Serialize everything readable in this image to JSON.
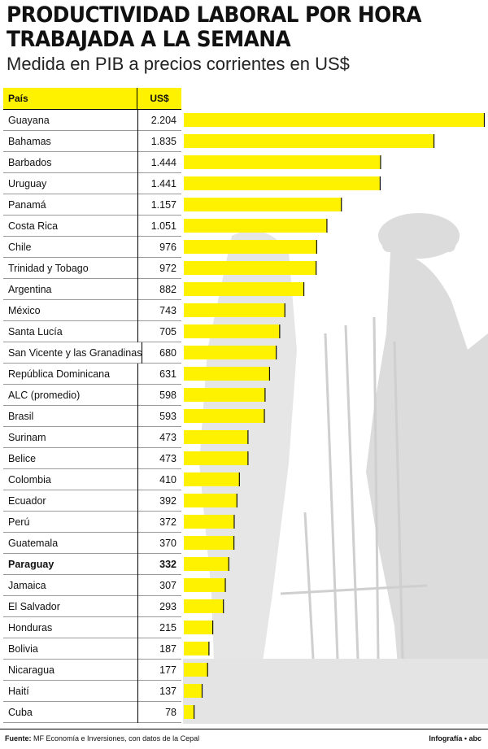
{
  "title": "PRODUCTIVIDAD LABORAL POR HORA TRABAJADA A LA SEMANA",
  "subtitle": "Medida en PIB a precios corrientes en US$",
  "table_headers": {
    "country": "País",
    "value": "US$"
  },
  "colors": {
    "bar": "#fff200",
    "header": "#fff200",
    "bar_edge": "#111111"
  },
  "chart_data": {
    "type": "bar",
    "orientation": "horizontal",
    "categories": [
      "Guayana",
      "Bahamas",
      "Barbados",
      "Uruguay",
      "Panamá",
      "Costa Rica",
      "Chile",
      "Trinidad y Tobago",
      "Argentina",
      "México",
      "Santa Lucía",
      "San Vicente y las Granadinas",
      "República Dominicana",
      "ALC (promedio)",
      "Brasil",
      "Surinam",
      "Belice",
      "Colombia",
      "Ecuador",
      "Perú",
      "Guatemala",
      "Paraguay",
      "Jamaica",
      "El Salvador",
      "Honduras",
      "Bolivia",
      "Nicaragua",
      "Haití",
      "Cuba"
    ],
    "values": [
      2204,
      1835,
      1444,
      1441,
      1157,
      1051,
      976,
      972,
      882,
      743,
      705,
      680,
      631,
      598,
      593,
      473,
      473,
      410,
      392,
      372,
      370,
      332,
      307,
      293,
      215,
      187,
      177,
      137,
      78
    ],
    "labels": [
      "2.204",
      "1.835",
      "1.444",
      "1.441",
      "1.157",
      "1.051",
      "976",
      "972",
      "882",
      "743",
      "705",
      "680",
      "631",
      "598",
      "593",
      "473",
      "473",
      "410",
      "392",
      "372",
      "370",
      "332",
      "307",
      "293",
      "215",
      "187",
      "177",
      "137",
      "78"
    ],
    "highlight": "Paraguay",
    "title": "PRODUCTIVIDAD LABORAL POR HORA TRABAJADA A LA SEMANA",
    "subtitle": "Medida en PIB a precios corrientes en US$"
  },
  "footer": {
    "source_label": "Fuente:",
    "source_text": "MF Economía e Inversiones, con datos de la Cepal",
    "credit": "Infografía • abc"
  }
}
